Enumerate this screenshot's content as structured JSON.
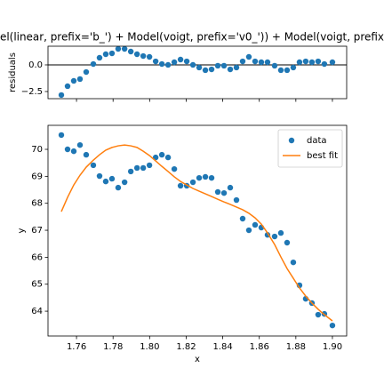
{
  "chart_data": [
    {
      "type": "scatter",
      "title": "el(linear, prefix='b_') + Model(voigt, prefix='v0_')) + Model(voigt, prefix",
      "ylabel": "residuals",
      "x": [
        1.7517,
        1.7551,
        1.7585,
        1.7619,
        1.7653,
        1.7692,
        1.7726,
        1.776,
        1.7794,
        1.7828,
        1.7863,
        1.7897,
        1.7931,
        1.7965,
        1.7999,
        1.8033,
        1.8067,
        1.8101,
        1.8135,
        1.8169,
        1.8203,
        1.8237,
        1.8271,
        1.8305,
        1.8339,
        1.8373,
        1.8407,
        1.8441,
        1.8475,
        1.8509,
        1.8543,
        1.8577,
        1.8611,
        1.8645,
        1.8684,
        1.8718,
        1.8752,
        1.8786,
        1.882,
        1.8854,
        1.8888,
        1.8922,
        1.8956,
        1.9
      ],
      "series": [
        {
          "type": "scatter",
          "color": "#1f77b4",
          "values": [
            -2.83,
            -2.0,
            -1.5,
            -1.33,
            -0.67,
            0.08,
            0.67,
            1.0,
            1.08,
            1.5,
            1.5,
            1.25,
            1.0,
            0.83,
            0.75,
            0.33,
            0.08,
            0,
            0.25,
            0.5,
            0.33,
            0,
            -0.25,
            -0.5,
            -0.42,
            -0.08,
            -0.08,
            -0.42,
            -0.25,
            0.33,
            0.75,
            0.33,
            0.25,
            0.25,
            -0.08,
            -0.5,
            -0.5,
            -0.25,
            0.25,
            0.33,
            0.25,
            0.33,
            0.08,
            0.25
          ]
        }
      ],
      "xlim": [
        1.7444,
        1.9078
      ],
      "xticks": [
        1.76,
        1.78,
        1.8,
        1.82,
        1.84,
        1.86,
        1.88,
        1.9
      ],
      "ylim": [
        -3.17,
        1.75
      ],
      "yticks": [
        {
          "value": -2.5,
          "label": "−2.5"
        },
        {
          "value": 0,
          "label": "0.0"
        }
      ]
    },
    {
      "type": "scatter",
      "xlabel": "x",
      "ylabel": "y",
      "legend": "upper right",
      "x": [
        1.7517,
        1.7551,
        1.7585,
        1.7619,
        1.7653,
        1.7692,
        1.7726,
        1.776,
        1.7794,
        1.7828,
        1.7863,
        1.7897,
        1.7931,
        1.7965,
        1.7999,
        1.8033,
        1.8067,
        1.8101,
        1.8135,
        1.8169,
        1.8203,
        1.8237,
        1.8271,
        1.8305,
        1.8339,
        1.8373,
        1.8407,
        1.8441,
        1.8475,
        1.8509,
        1.8543,
        1.8577,
        1.8611,
        1.8645,
        1.8684,
        1.8718,
        1.8752,
        1.8786,
        1.882,
        1.8854,
        1.8888,
        1.8922,
        1.8956,
        1.9
      ],
      "series": [
        {
          "name": "data",
          "type": "scatter",
          "color": "#1f77b4",
          "values": [
            70.53,
            70.0,
            69.93,
            70.16,
            69.8,
            69.41,
            69.01,
            68.81,
            68.91,
            68.58,
            68.78,
            69.18,
            69.31,
            69.31,
            69.41,
            69.7,
            69.8,
            69.7,
            69.27,
            68.65,
            68.65,
            68.78,
            68.94,
            68.98,
            68.94,
            68.42,
            68.38,
            68.58,
            68.12,
            67.43,
            67.0,
            67.2,
            67.1,
            66.83,
            66.77,
            66.9,
            66.54,
            65.81,
            64.96,
            64.46,
            64.3,
            63.87,
            63.9,
            63.47
          ]
        },
        {
          "name": "best fit",
          "type": "line",
          "color": "#ff7f0e",
          "values": [
            67.69,
            68.22,
            68.68,
            69.04,
            69.34,
            69.6,
            69.8,
            69.97,
            70.07,
            70.13,
            70.16,
            70.13,
            70.07,
            69.93,
            69.77,
            69.57,
            69.37,
            69.18,
            68.98,
            68.81,
            68.68,
            68.55,
            68.45,
            68.35,
            68.25,
            68.15,
            68.05,
            67.96,
            67.86,
            67.76,
            67.63,
            67.46,
            67.23,
            66.9,
            66.47,
            66.01,
            65.58,
            65.22,
            64.86,
            64.56,
            64.3,
            64.07,
            63.87,
            63.64
          ]
        }
      ],
      "xlim": [
        1.7444,
        1.9078
      ],
      "xticks": [
        {
          "value": 1.76,
          "label": "1.76"
        },
        {
          "value": 1.78,
          "label": "1.78"
        },
        {
          "value": 1.8,
          "label": "1.80"
        },
        {
          "value": 1.82,
          "label": "1.82"
        },
        {
          "value": 1.84,
          "label": "1.84"
        },
        {
          "value": 1.86,
          "label": "1.86"
        },
        {
          "value": 1.88,
          "label": "1.88"
        },
        {
          "value": 1.9,
          "label": "1.90"
        }
      ],
      "ylim": [
        63.08,
        70.89
      ],
      "yticks": [
        64,
        65,
        66,
        67,
        68,
        69,
        70
      ]
    }
  ]
}
